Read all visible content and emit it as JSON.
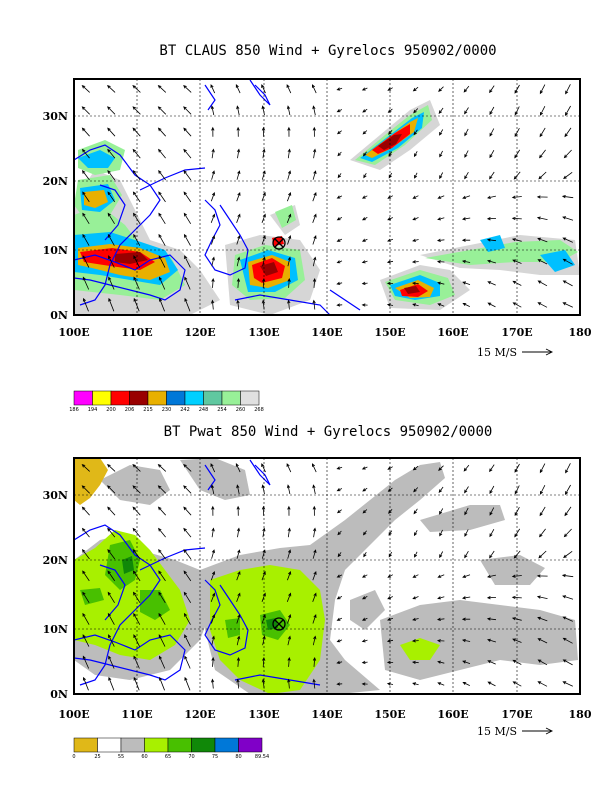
{
  "panels": [
    {
      "title": "BT CLAUS 850 Wind + Gyrelocs 950902/0000",
      "lat_ticks": [
        "30N",
        "20N",
        "10N",
        "0N"
      ],
      "lon_ticks": [
        "100E",
        "110E",
        "120E",
        "130E",
        "140E",
        "150E",
        "160E",
        "170E",
        "180"
      ],
      "vector_scale_label": "15 M/S",
      "colorbar": {
        "colors": [
          "#ff00ff",
          "#ffff00",
          "#ff0000",
          "#990000",
          "#e8b000",
          "#0078d8",
          "#00d0ff",
          "#60c8a0",
          "#98f098",
          "#e0e0e0"
        ],
        "labels": [
          "186",
          "194",
          "200",
          "206",
          "215",
          "230",
          "242",
          "248",
          "254",
          "260",
          "268"
        ]
      }
    },
    {
      "title": "BT Pwat 850 Wind + Gyrelocs 950902/0000",
      "lat_ticks": [
        "30N",
        "20N",
        "10N",
        "0N"
      ],
      "lon_ticks": [
        "100E",
        "110E",
        "120E",
        "130E",
        "140E",
        "150E",
        "160E",
        "170E",
        "180"
      ],
      "vector_scale_label": "15 M/S",
      "colorbar": {
        "colors": [
          "#e0b818",
          "#ffffff",
          "#bcbcbc",
          "#a8f000",
          "#48c000",
          "#108808",
          "#0078d8",
          "#8000c8"
        ],
        "labels": [
          "0",
          "25",
          "55",
          "60",
          "65",
          "70",
          "75",
          "80",
          "89.54"
        ]
      }
    }
  ]
}
